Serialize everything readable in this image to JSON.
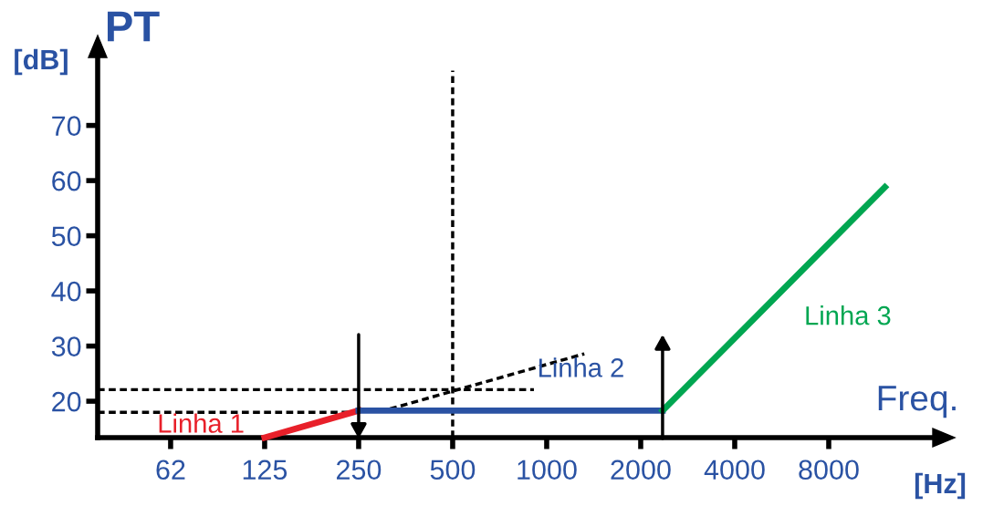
{
  "chart_data": {
    "type": "line",
    "title": "PT",
    "ylabel": "[dB]",
    "xlabel": "Freq.",
    "annotations": [
      "[Hz]"
    ],
    "log": "x",
    "xlim": [
      36.5,
      17000
    ],
    "ylim": [
      13.4,
      82
    ],
    "xticks": [
      {
        "value": 62.5,
        "label": "62"
      },
      125,
      250,
      500,
      1000,
      2000,
      4000,
      8000
    ],
    "yticks": [
      20,
      30,
      40,
      50,
      60,
      70
    ],
    "grid": false,
    "legend": false,
    "marker": "none",
    "series": [
      {
        "name": "Linha 1",
        "color": "#e8202a",
        "x": [
          125,
          250
        ],
        "values": [
          13.4,
          18.3
        ]
      },
      {
        "name": "Linha 2",
        "color": "#2a52a3",
        "x": [
          250,
          2350
        ],
        "values": [
          18.3,
          18.3
        ]
      },
      {
        "name": "Linha 3",
        "color": "#00a651",
        "x": [
          2350,
          12100
        ],
        "values": [
          18.3,
          58.8
        ]
      },
      {
        "color": "#000000",
        "line_style": "dashed",
        "x": [
          315,
          1320
        ],
        "values": [
          18.6,
          28.6
        ]
      },
      {
        "color": "#000000",
        "line_style": "dashed",
        "x": [
          36.5,
          910
        ],
        "values": [
          22.1,
          22.1
        ]
      },
      {
        "color": "#000000",
        "line_style": "dashed",
        "x": [
          36.5,
          250
        ],
        "values": [
          18.0,
          18.0
        ]
      }
    ],
    "ref_lines": [
      {
        "axis": "x",
        "value": 36.5,
        "label": null,
        "color": "#000000",
        "line_style": "solid"
      },
      {
        "axis": "y",
        "value": 13.4,
        "label": null,
        "color": "#000000",
        "line_style": "solid"
      },
      {
        "axis": "x",
        "value": 500,
        "label": null,
        "color": "#000000",
        "line_style": "dashed"
      }
    ]
  }
}
